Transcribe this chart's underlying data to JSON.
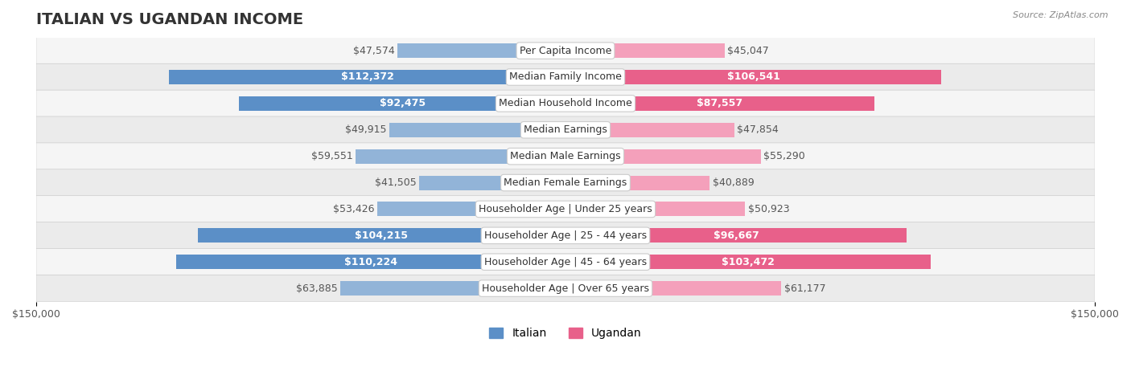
{
  "title": "ITALIAN VS UGANDAN INCOME",
  "source": "Source: ZipAtlas.com",
  "categories": [
    "Per Capita Income",
    "Median Family Income",
    "Median Household Income",
    "Median Earnings",
    "Median Male Earnings",
    "Median Female Earnings",
    "Householder Age | Under 25 years",
    "Householder Age | 25 - 44 years",
    "Householder Age | 45 - 64 years",
    "Householder Age | Over 65 years"
  ],
  "italian_values": [
    47574,
    112372,
    92475,
    49915,
    59551,
    41505,
    53426,
    104215,
    110224,
    63885
  ],
  "ugandan_values": [
    45047,
    106541,
    87557,
    47854,
    55290,
    40889,
    50923,
    96667,
    103472,
    61177
  ],
  "italian_labels": [
    "$47,574",
    "$112,372",
    "$92,475",
    "$49,915",
    "$59,551",
    "$41,505",
    "$53,426",
    "$104,215",
    "$110,224",
    "$63,885"
  ],
  "ugandan_labels": [
    "$45,047",
    "$106,541",
    "$87,557",
    "$47,854",
    "$55,290",
    "$40,889",
    "$50,923",
    "$96,667",
    "$103,472",
    "$61,177"
  ],
  "max_value": 150000,
  "italian_color": "#92b4d8",
  "italian_color_dark": "#5b8fc7",
  "ugandan_color": "#f4a0bb",
  "ugandan_color_dark": "#e8608a",
  "bg_row_color": "#f0f0f0",
  "bar_height": 0.55,
  "title_fontsize": 14,
  "label_fontsize": 9,
  "axis_fontsize": 9,
  "legend_fontsize": 10
}
